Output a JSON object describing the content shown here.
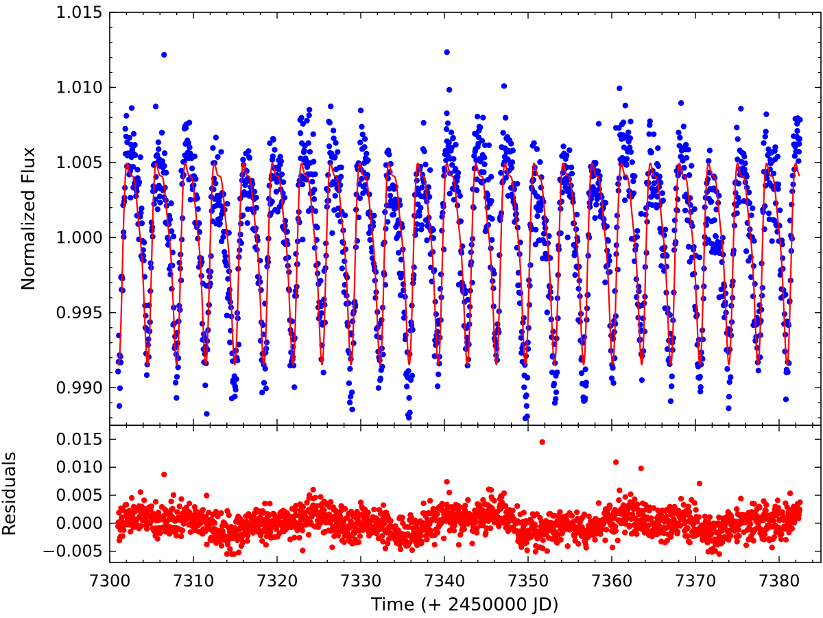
{
  "chart_data": [
    {
      "type": "scatter",
      "panel": "top",
      "ylabel": "Normalized Flux",
      "xlim": [
        7300,
        7385
      ],
      "ylim": [
        0.9875,
        1.015
      ],
      "xticks": [
        7300,
        7310,
        7320,
        7330,
        7340,
        7350,
        7360,
        7370,
        7380
      ],
      "yticks": [
        "0.990",
        "0.995",
        "1.000",
        "1.005",
        "1.010",
        "1.015"
      ],
      "grid": false,
      "series": [
        {
          "kind": "points",
          "color": "#0000ff",
          "x_range": [
            7301.0,
            7382.5
          ],
          "cycle_period_days": 3.474,
          "amplitude_range": [
            -0.0115,
            0.012
          ],
          "point_count_approx": 1800
        },
        {
          "kind": "model-line",
          "color": "#ff0000",
          "x_range": [
            7301.0,
            7382.5
          ],
          "peak_value": 1.0077,
          "trough_value": 0.9916
        }
      ]
    },
    {
      "type": "scatter",
      "panel": "bottom",
      "xlabel": "Time (+ 2450000 JD)",
      "ylabel": "Residuals",
      "xlim": [
        7300,
        7385
      ],
      "ylim": [
        -0.007,
        0.0175
      ],
      "xticks": [
        7300,
        7310,
        7320,
        7330,
        7340,
        7350,
        7360,
        7370,
        7380
      ],
      "yticks": [
        "−0.005",
        "0.000",
        "0.005",
        "0.010",
        "0.015"
      ],
      "grid": false,
      "series": [
        {
          "kind": "points",
          "color": "#ff0000",
          "x_range": [
            7301.0,
            7382.5
          ],
          "value_range": [
            -0.0055,
            0.0145
          ],
          "outliers": [
            [
              7306.5,
              0.0087
            ],
            [
              7351.7,
              0.0145
            ],
            [
              7360.5,
              0.0109
            ],
            [
              7363.5,
              0.0098
            ],
            [
              7340.3,
              0.0074
            ],
            [
              7370.5,
              0.0071
            ]
          ]
        }
      ]
    }
  ]
}
